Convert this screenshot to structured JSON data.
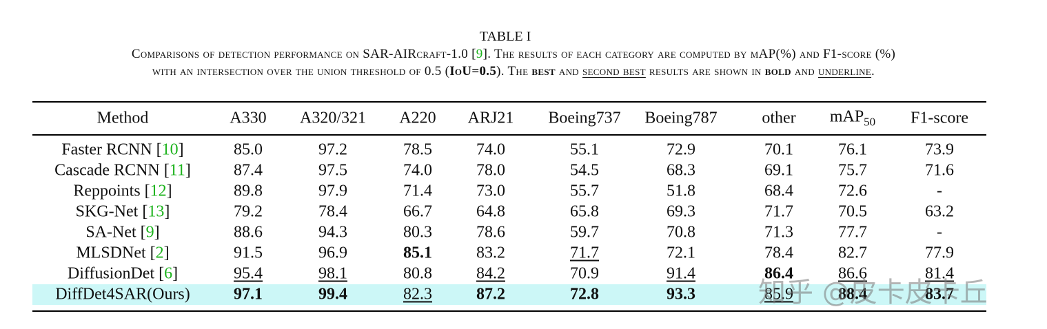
{
  "title": "TABLE I",
  "caption": {
    "lines": [
      [
        {
          "text": "Comparisons of detection performance on SAR-AIRcraft-1.0 ["
        },
        {
          "text": "9",
          "style": "ref"
        },
        {
          "text": "]. The results of each category are computed by mAP(%) and F1-score (%)"
        }
      ],
      [
        {
          "text": "with an intersection over the union threshold of 0.5 ("
        },
        {
          "text": "IoU=0.5",
          "style": "bold"
        },
        {
          "text": "). The "
        },
        {
          "text": "best",
          "style": "bold"
        },
        {
          "text": " and "
        },
        {
          "text": "second best",
          "style": "underline"
        },
        {
          "text": " results are shown in "
        },
        {
          "text": "bold",
          "style": "bold"
        },
        {
          "text": " and "
        },
        {
          "text": "underline",
          "style": "underline"
        },
        {
          "text": "."
        }
      ]
    ]
  },
  "table": {
    "header": [
      {
        "text": "Method"
      },
      {
        "text": "A330"
      },
      {
        "text": "A320/321"
      },
      {
        "text": "A220"
      },
      {
        "text": "ARJ21"
      },
      {
        "text": "Boeing737"
      },
      {
        "text": "Boeing787"
      },
      {
        "text": "other"
      },
      {
        "text": "mAP",
        "sub": "50"
      },
      {
        "text": "F1-score"
      }
    ],
    "rows": [
      {
        "method": [
          "Faster RCNN [",
          "10",
          "]"
        ],
        "values": [
          "85.0",
          "97.2",
          "78.5",
          "74.0",
          "55.1",
          "72.9",
          "70.1",
          "76.1",
          "73.9"
        ],
        "bold": [],
        "underline": []
      },
      {
        "method": [
          "Cascade RCNN [",
          "11",
          "]"
        ],
        "values": [
          "87.4",
          "97.5",
          "74.0",
          "78.0",
          "54.5",
          "68.3",
          "69.1",
          "75.7",
          "71.6"
        ],
        "bold": [],
        "underline": []
      },
      {
        "method": [
          "Reppoints [",
          "12",
          "]"
        ],
        "values": [
          "89.8",
          "97.9",
          "71.4",
          "73.0",
          "55.7",
          "51.8",
          "68.4",
          "72.6",
          "-"
        ],
        "bold": [],
        "underline": []
      },
      {
        "method": [
          "SKG-Net [",
          "13",
          "]"
        ],
        "values": [
          "79.2",
          "78.4",
          "66.7",
          "64.8",
          "65.8",
          "69.3",
          "71.7",
          "70.5",
          "63.2"
        ],
        "bold": [],
        "underline": []
      },
      {
        "method": [
          "SA-Net [",
          "9",
          "]"
        ],
        "values": [
          "88.6",
          "94.3",
          "80.3",
          "78.6",
          "59.7",
          "70.8",
          "71.3",
          "77.7",
          "-"
        ],
        "bold": [],
        "underline": []
      },
      {
        "method": [
          "MLSDNet [",
          "2",
          "]"
        ],
        "values": [
          "91.5",
          "96.9",
          "85.1",
          "83.2",
          "71.7",
          "72.1",
          "78.4",
          "82.7",
          "77.9"
        ],
        "bold": [
          2
        ],
        "underline": [
          4
        ]
      },
      {
        "method": [
          "DiffusionDet [",
          "6",
          "]"
        ],
        "values": [
          "95.4",
          "98.1",
          "80.8",
          "84.2",
          "70.9",
          "91.4",
          "86.4",
          "86.6",
          "81.4"
        ],
        "bold": [
          6
        ],
        "underline": [
          0,
          1,
          3,
          5,
          7,
          8
        ]
      },
      {
        "method": [
          "DiffDet4SAR(Ours)"
        ],
        "values": [
          "97.1",
          "99.4",
          "82.3",
          "87.2",
          "72.8",
          "93.3",
          "85.9",
          "88.4",
          "83.7"
        ],
        "bold": [
          0,
          1,
          3,
          4,
          5,
          7,
          8
        ],
        "underline": [
          2,
          6
        ],
        "highlight": true
      }
    ]
  },
  "watermark": "知乎 @皮卡皮卡丘"
}
